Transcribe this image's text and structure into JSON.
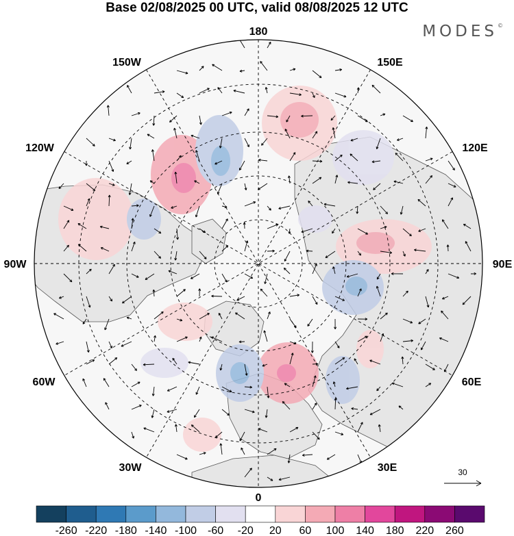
{
  "title": "Base 02/08/2025 00 UTC, valid 08/08/2025 12 UTC",
  "brand": {
    "name": "MODES",
    "mark": "©"
  },
  "longitude_labels": {
    "lon_180": "180",
    "lon_150w": "150W",
    "lon_150e": "150E",
    "lon_120w": "120W",
    "lon_120e": "120E",
    "lon_90w": "90W",
    "lon_90e": "90E",
    "lon_60w": "60W",
    "lon_60e": "60E",
    "lon_30w": "30W",
    "lon_30e": "30E",
    "lon_0": "0"
  },
  "reference_vector": {
    "value": "30"
  },
  "colorbar": {
    "labels": [
      "-260",
      "-220",
      "-180",
      "-140",
      "-100",
      "-60",
      "-20",
      "20",
      "60",
      "100",
      "140",
      "180",
      "220",
      "260"
    ],
    "colors": [
      "#14405e",
      "#1f5d8e",
      "#2f79b4",
      "#5b9bcb",
      "#93b8dc",
      "#c1cde6",
      "#e2e0f0",
      "#ffffff",
      "#f9d5d6",
      "#f4aab5",
      "#ee7fa6",
      "#e2479c",
      "#c0167f",
      "#8b0a74",
      "#5a0a6e"
    ]
  },
  "map_colors": {
    "land": "#e6e6e6",
    "ocean": "#f7f7f7",
    "coast": "#555555",
    "grid": "#000000"
  }
}
